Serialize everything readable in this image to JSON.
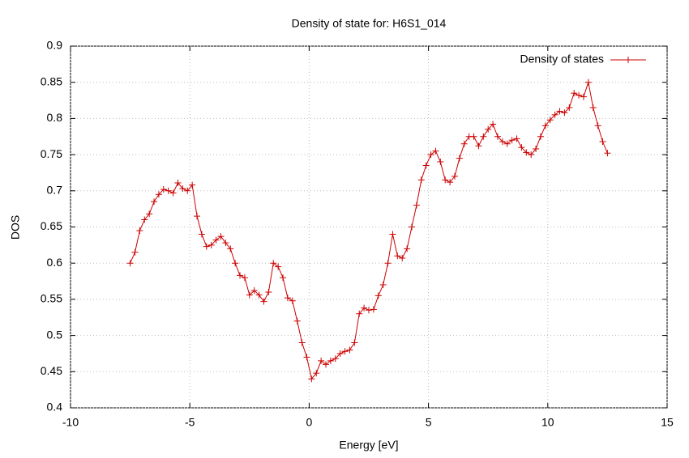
{
  "chart_data": {
    "type": "line",
    "title": "Density of state for: H6S1_014",
    "x_label": "Energy [eV]",
    "y_label": "DOS",
    "xlim": [
      -10,
      15
    ],
    "xticks": [
      -10,
      -5,
      0,
      5,
      10,
      15
    ],
    "ylim": [
      0.4,
      0.9
    ],
    "yticks": [
      0.4,
      0.45,
      0.5,
      0.55,
      0.6,
      0.65,
      0.7,
      0.75,
      0.8,
      0.85,
      0.9
    ],
    "grid": true,
    "legend": "top-right",
    "x": [
      -7.5,
      -7.3,
      -7.1,
      -6.9,
      -6.7,
      -6.5,
      -6.3,
      -6.1,
      -5.9,
      -5.7,
      -5.5,
      -5.3,
      -5.1,
      -4.9,
      -4.7,
      -4.5,
      -4.3,
      -4.1,
      -3.9,
      -3.7,
      -3.5,
      -3.3,
      -3.1,
      -2.9,
      -2.7,
      -2.5,
      -2.3,
      -2.1,
      -1.9,
      -1.7,
      -1.5,
      -1.3,
      -1.1,
      -0.9,
      -0.7,
      -0.5,
      -0.3,
      -0.1,
      0.1,
      0.3,
      0.5,
      0.7,
      0.9,
      1.1,
      1.3,
      1.5,
      1.7,
      1.9,
      2.1,
      2.3,
      2.5,
      2.7,
      2.9,
      3.1,
      3.3,
      3.5,
      3.7,
      3.9,
      4.1,
      4.3,
      4.5,
      4.7,
      4.9,
      5.1,
      5.3,
      5.5,
      5.7,
      5.9,
      6.1,
      6.3,
      6.5,
      6.7,
      6.9,
      7.1,
      7.3,
      7.5,
      7.7,
      7.9,
      8.1,
      8.3,
      8.5,
      8.7,
      8.9,
      9.1,
      9.3,
      9.5,
      9.7,
      9.9,
      10.1,
      10.3,
      10.5,
      10.7,
      10.9,
      11.1,
      11.3,
      11.5,
      11.7,
      11.9,
      12.1,
      12.3,
      12.5
    ],
    "series": [
      {
        "name": "Density of states",
        "color": "#cc0000",
        "values": [
          0.6,
          0.615,
          0.645,
          0.66,
          0.668,
          0.685,
          0.695,
          0.702,
          0.7,
          0.697,
          0.711,
          0.703,
          0.7,
          0.708,
          0.665,
          0.64,
          0.623,
          0.625,
          0.632,
          0.637,
          0.628,
          0.62,
          0.6,
          0.583,
          0.58,
          0.556,
          0.562,
          0.556,
          0.547,
          0.56,
          0.6,
          0.595,
          0.58,
          0.552,
          0.548,
          0.52,
          0.49,
          0.47,
          0.44,
          0.448,
          0.465,
          0.46,
          0.465,
          0.468,
          0.475,
          0.478,
          0.48,
          0.49,
          0.53,
          0.538,
          0.535,
          0.536,
          0.555,
          0.57,
          0.6,
          0.64,
          0.61,
          0.607,
          0.62,
          0.65,
          0.68,
          0.715,
          0.735,
          0.75,
          0.755,
          0.74,
          0.715,
          0.712,
          0.72,
          0.745,
          0.765,
          0.775,
          0.775,
          0.762,
          0.775,
          0.785,
          0.792,
          0.775,
          0.768,
          0.765,
          0.77,
          0.772,
          0.76,
          0.753,
          0.75,
          0.758,
          0.775,
          0.79,
          0.798,
          0.805,
          0.81,
          0.808,
          0.815,
          0.835,
          0.832,
          0.83,
          0.85,
          0.815,
          0.79,
          0.768,
          0.752
        ]
      }
    ]
  }
}
